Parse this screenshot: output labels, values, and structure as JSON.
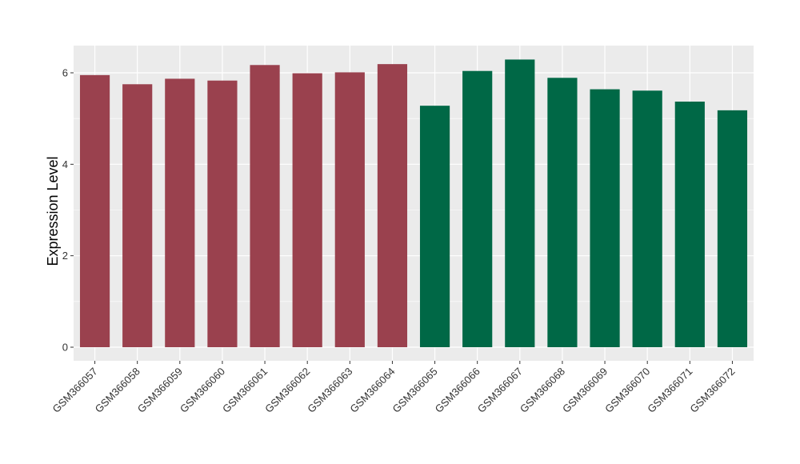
{
  "chart_data": {
    "type": "bar",
    "title": "",
    "xlabel": "",
    "ylabel": "Expression Level",
    "ylim": [
      0,
      6.6
    ],
    "yticks": [
      0,
      2,
      4,
      6
    ],
    "grid": true,
    "categories": [
      "GSM366057",
      "GSM366058",
      "GSM366059",
      "GSM366060",
      "GSM366061",
      "GSM366062",
      "GSM366063",
      "GSM366064",
      "GSM366065",
      "GSM366066",
      "GSM366067",
      "GSM366068",
      "GSM366069",
      "GSM366070",
      "GSM366071",
      "GSM366072"
    ],
    "values": [
      5.95,
      5.75,
      5.87,
      5.83,
      6.17,
      5.99,
      6.01,
      6.19,
      5.28,
      6.04,
      6.29,
      5.89,
      5.64,
      5.61,
      5.37,
      5.18
    ],
    "bar_colors": [
      "#9a414e",
      "#9a414e",
      "#9a414e",
      "#9a414e",
      "#9a414e",
      "#9a414e",
      "#9a414e",
      "#9a414e",
      "#006846",
      "#006846",
      "#006846",
      "#006846",
      "#006846",
      "#006846",
      "#006846",
      "#006846"
    ],
    "panel_color": "#ebebeb",
    "grid_color": "#ffffff"
  }
}
